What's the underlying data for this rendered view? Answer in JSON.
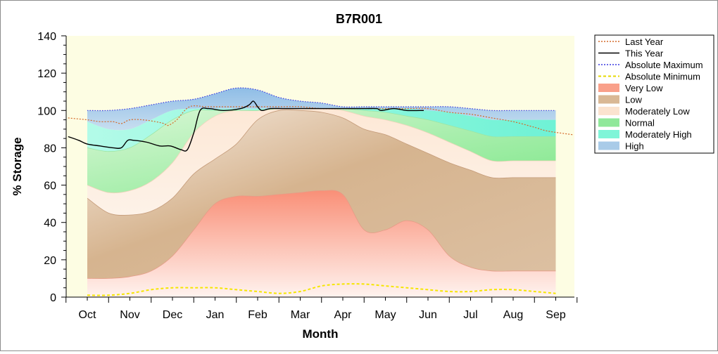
{
  "chart_data": {
    "type": "area",
    "title": "B7R001",
    "xlabel": "Month",
    "ylabel": "% Storage",
    "ylim": [
      0,
      140
    ],
    "yticks": [
      0,
      20,
      40,
      60,
      80,
      100,
      120,
      140
    ],
    "categories": [
      "Oct",
      "Nov",
      "Dec",
      "Jan",
      "Feb",
      "Mar",
      "Apr",
      "May",
      "Jun",
      "Jul",
      "Aug",
      "Sep"
    ],
    "grid": false,
    "legend_position": "right",
    "band_x": [
      0.0,
      0.5,
      1.0,
      1.5,
      2.0,
      2.5,
      3.0,
      3.5,
      4.0,
      4.5,
      5.0,
      5.5,
      6.0,
      6.5,
      7.0,
      7.5,
      8.0,
      8.5,
      9.0,
      9.5,
      10.0,
      10.5,
      11.0
    ],
    "bands": {
      "absolute_minimum": [
        1,
        1,
        2,
        4,
        5,
        5,
        5,
        4,
        3,
        2,
        3,
        6,
        7,
        7,
        6,
        5,
        4,
        3,
        3,
        4,
        4,
        3,
        2
      ],
      "very_low_top": [
        10,
        10,
        11,
        14,
        22,
        36,
        50,
        54,
        54,
        55,
        56,
        57,
        55,
        36,
        36,
        41,
        36,
        22,
        16,
        14,
        14,
        14,
        14
      ],
      "low_top": [
        53,
        45,
        44,
        46,
        53,
        66,
        74,
        82,
        95,
        100,
        100,
        99,
        96,
        90,
        87,
        82,
        77,
        72,
        68,
        64,
        64,
        64,
        64
      ],
      "moderately_low_top": [
        60,
        56,
        57,
        62,
        72,
        88,
        97,
        100,
        100,
        101,
        101,
        101,
        100,
        97,
        95,
        92,
        88,
        83,
        78,
        73,
        73,
        73,
        73
      ],
      "normal_top": [
        80,
        78,
        80,
        87,
        95,
        100,
        100,
        100,
        100,
        101,
        101,
        101,
        101,
        100,
        99,
        97,
        95,
        92,
        89,
        86,
        86,
        86,
        86
      ],
      "moderately_high_top": [
        94,
        90,
        90,
        95,
        100,
        101,
        101,
        101,
        101,
        101,
        101,
        101,
        101,
        101,
        101,
        101,
        100,
        99,
        97,
        95,
        95,
        95,
        95
      ],
      "high_top": [
        100,
        100,
        101,
        103,
        105,
        106,
        109,
        112,
        111,
        107,
        105,
        104,
        102,
        102,
        102,
        102,
        102,
        102,
        101,
        100,
        100,
        100,
        100
      ]
    },
    "series": [
      {
        "name": "Last Year",
        "color": "#d46a2a",
        "style": "dotted",
        "x": [
          -0.45,
          0.0,
          0.3,
          0.6,
          0.8,
          1.0,
          1.3,
          1.6,
          1.8,
          1.9,
          2.1,
          2.4,
          2.8,
          3.2,
          3.6,
          4.0,
          4.5,
          5.0,
          5.5,
          6.0,
          6.5,
          7.0,
          7.5,
          8.0,
          8.5,
          9.0,
          9.5,
          10.0,
          10.5,
          10.8,
          11.4
        ],
        "values": [
          96,
          95,
          94,
          94,
          93,
          95,
          95,
          94,
          93,
          92,
          95,
          102,
          102,
          102,
          102,
          102,
          102,
          102,
          101,
          101,
          101,
          101,
          101,
          101,
          99,
          98,
          96,
          94,
          91,
          89,
          87
        ]
      },
      {
        "name": "This Year",
        "color": "#000000",
        "style": "solid",
        "x": [
          -0.45,
          -0.2,
          0.0,
          0.3,
          0.6,
          0.8,
          0.95,
          1.1,
          1.4,
          1.7,
          1.95,
          2.2,
          2.35,
          2.5,
          2.65,
          2.85,
          3.2,
          3.6,
          3.8,
          3.9,
          4.0,
          4.1,
          4.3,
          4.6,
          5.0,
          5.5,
          6.0,
          6.5,
          6.8,
          6.9,
          7.2,
          7.5,
          7.9
        ],
        "values": [
          86,
          84,
          82,
          81,
          80,
          80,
          84,
          84,
          83,
          81,
          81,
          79,
          79,
          88,
          100,
          101,
          100,
          101,
          103,
          105,
          102,
          100,
          101,
          101,
          101,
          101,
          101,
          101,
          101,
          100,
          101,
          100,
          100
        ]
      },
      {
        "name": "Absolute Maximum",
        "color": "#3a3ae0",
        "style": "dotted"
      },
      {
        "name": "Absolute Minimum",
        "color": "#e5d800",
        "style": "dashed"
      }
    ],
    "legend": [
      {
        "label": "Last Year",
        "kind": "line",
        "color": "#d46a2a",
        "style": "dotted"
      },
      {
        "label": "This Year",
        "kind": "line",
        "color": "#000000",
        "style": "solid"
      },
      {
        "label": "Absolute Maximum",
        "kind": "line",
        "color": "#3a3ae0",
        "style": "dotted"
      },
      {
        "label": "Absolute Minimum",
        "kind": "line",
        "color": "#e5d800",
        "style": "dashed"
      },
      {
        "label": "Very Low",
        "kind": "fill",
        "color": "#f9a08a"
      },
      {
        "label": "Low",
        "kind": "fill",
        "color": "#d9b895"
      },
      {
        "label": "Moderately Low",
        "kind": "fill",
        "color": "#fbe3cf"
      },
      {
        "label": "Normal",
        "kind": "fill",
        "color": "#8fe89a"
      },
      {
        "label": "Moderately High",
        "kind": "fill",
        "color": "#7ff5d8"
      },
      {
        "label": "High",
        "kind": "fill",
        "color": "#a9cbe8"
      }
    ],
    "colors": {
      "plot_background": "#fdfde3",
      "axis": "#000000"
    }
  }
}
